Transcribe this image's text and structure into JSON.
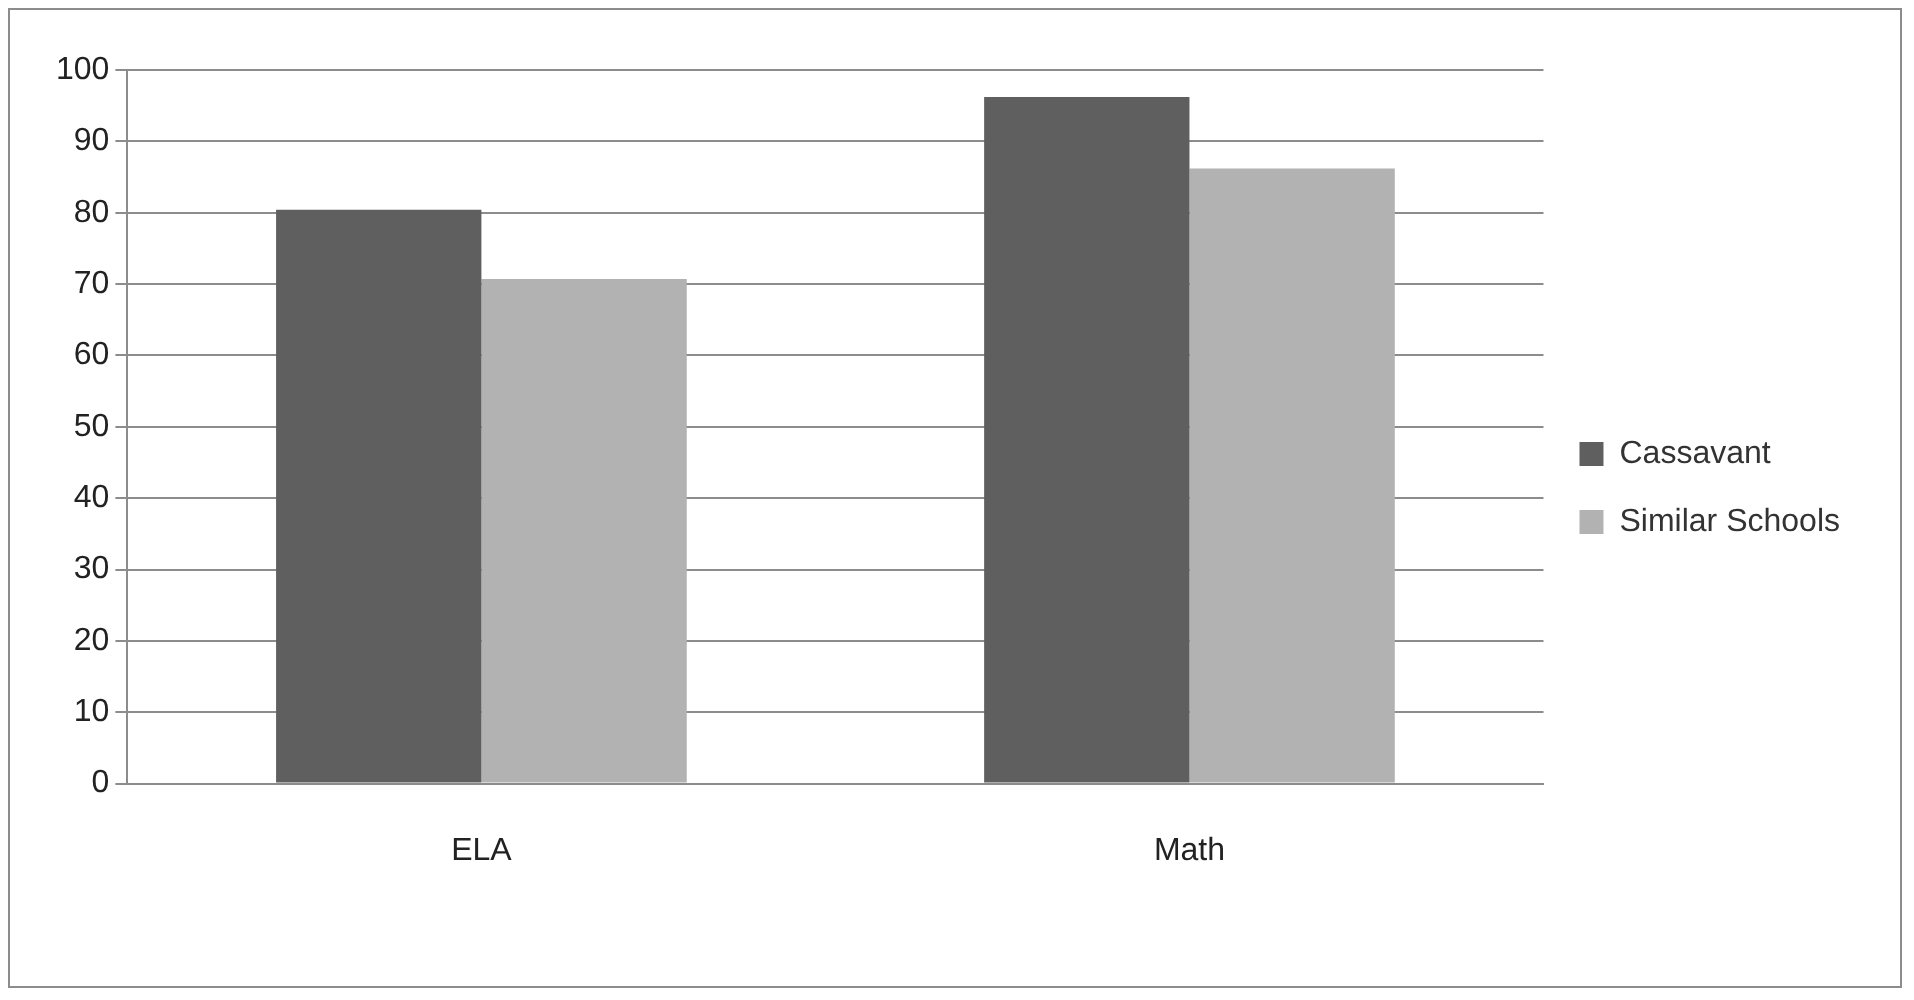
{
  "chart_data": {
    "type": "bar",
    "categories": [
      "ELA",
      "Math"
    ],
    "series": [
      {
        "name": "Cassavant",
        "color": "#5f5f5f",
        "values": [
          80.4,
          96.2
        ]
      },
      {
        "name": "Similar Schools",
        "color": "#b2b2b2",
        "values": [
          70.7,
          86.2
        ]
      }
    ],
    "ylim": [
      0,
      100
    ],
    "yticks": [
      0,
      10,
      20,
      30,
      40,
      50,
      60,
      70,
      80,
      90,
      100
    ],
    "grid": "y",
    "legend": "right"
  }
}
